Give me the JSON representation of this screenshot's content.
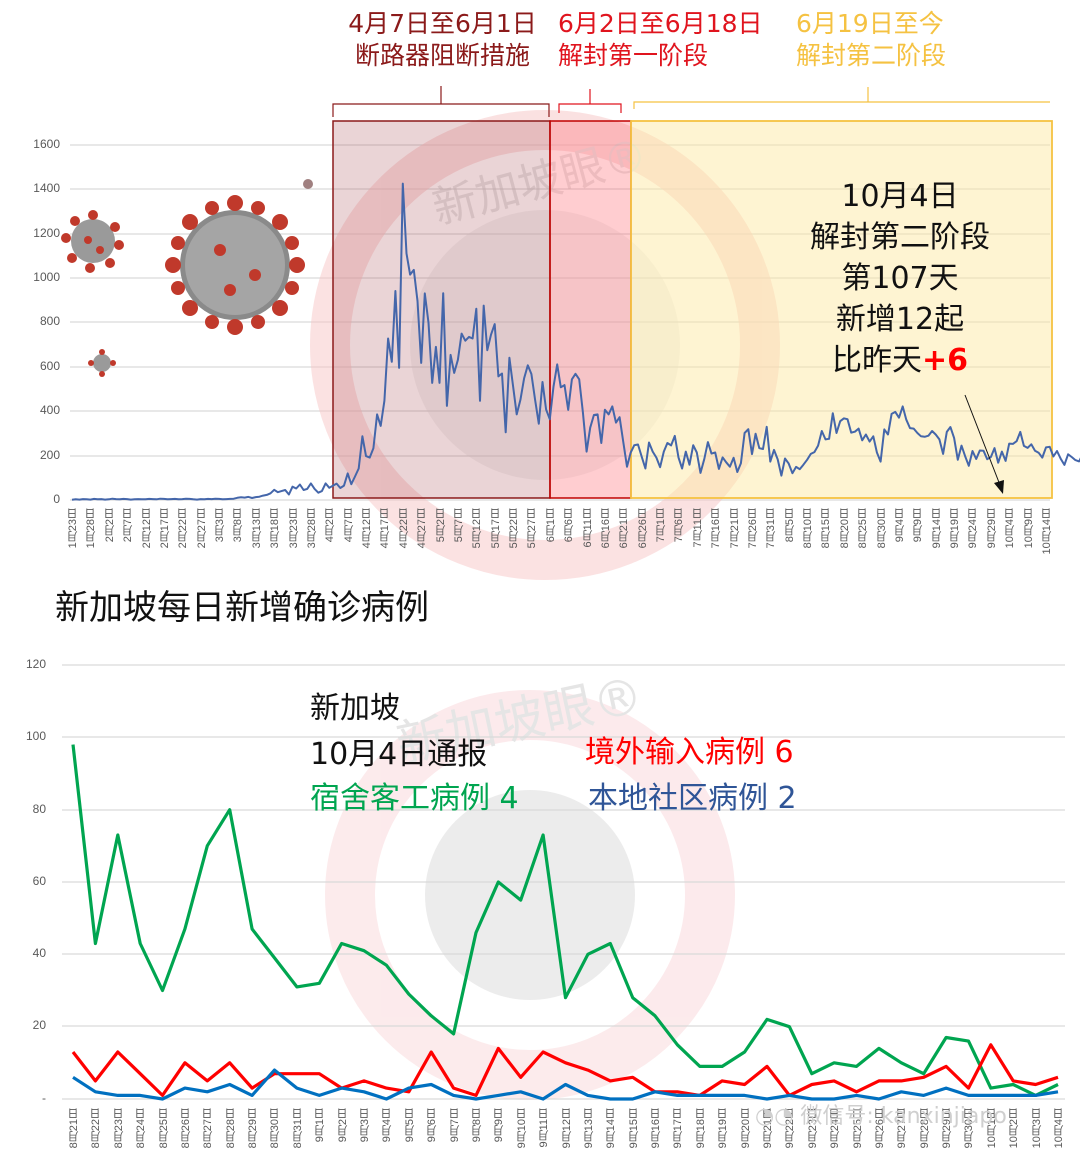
{
  "phases": [
    {
      "date_range": "4月7日至6月1日",
      "label": "断路器阻断措施",
      "color": "#8B1A1A",
      "fill": "rgba(160,60,70,0.25)"
    },
    {
      "date_range": "6月2日至6月18日",
      "label": "解封第一阶段",
      "color": "#E0141E",
      "fill": "rgba(255,80,90,0.3)"
    },
    {
      "date_range": "6月19日至今",
      "label": "解封第二阶段",
      "color": "#F5C242",
      "fill": "rgba(253,230,160,0.45)"
    }
  ],
  "annotation": {
    "line1": "10月4日",
    "line2": "解封第二阶段",
    "line3": "第107天",
    "line4": "新增12起",
    "line5_prefix": "比昨天",
    "line5_delta": "+6"
  },
  "watermark": {
    "text": "新加坡眼",
    "mark": "®",
    "wechat": "微信号: kanxinjiapo"
  },
  "bottom_title": "新加坡每日新增确诊病例",
  "legend": {
    "line1": "新加坡",
    "line2": "10月4日通报",
    "imported": "境外输入病例 6",
    "dorm": "宿舍客工病例 4",
    "community": "本地社区病例 2"
  },
  "chart_data": [
    {
      "type": "line",
      "title": "",
      "xlabel": "",
      "ylabel": "",
      "ylim": [
        0,
        1600
      ],
      "yticks": [
        0,
        200,
        400,
        600,
        800,
        1000,
        1200,
        1400,
        1600
      ],
      "grid": true,
      "categories": [
        "1月23日",
        "1月28日",
        "2月2日",
        "2月7日",
        "2月12日",
        "2月17日",
        "2月22日",
        "2月27日",
        "3月3日",
        "3月8日",
        "3月13日",
        "3月18日",
        "3月23日",
        "3月28日",
        "4月2日",
        "4月7日",
        "4月12日",
        "4月17日",
        "4月22日",
        "4月27日",
        "5月2日",
        "5月7日",
        "5月12日",
        "5月17日",
        "5月22日",
        "5月27日",
        "6月1日",
        "6月6日",
        "6月11日",
        "6月16日",
        "6月21日",
        "6月26日",
        "7月1日",
        "7月6日",
        "7月11日",
        "7月16日",
        "7月21日",
        "7月26日",
        "7月31日",
        "8月5日",
        "8月10日",
        "8月15日",
        "8月20日",
        "8月25日",
        "8月30日",
        "9月4日",
        "9月9日",
        "9月14日",
        "9月19日",
        "9月24日",
        "9月29日",
        "10月4日",
        "10月9日",
        "10月14日"
      ],
      "series": [
        {
          "name": "每日新增确诊",
          "color": "#4472C4",
          "values": [
            1,
            3,
            2,
            4,
            3,
            2,
            5,
            3,
            4,
            2,
            3,
            6,
            4,
            3,
            5,
            4,
            2,
            3,
            4,
            3,
            3,
            5,
            4,
            3,
            6,
            5,
            3,
            4,
            5,
            3,
            4,
            6,
            5,
            3,
            2,
            4,
            3,
            5,
            4,
            6,
            5,
            3,
            4,
            5,
            6,
            10,
            12,
            11,
            14,
            9,
            13,
            15,
            20,
            23,
            30,
            46,
            35,
            40,
            45,
            25,
            60,
            52,
            70,
            45,
            50,
            75,
            50,
            33,
            40,
            75,
            55,
            65,
            74,
            54,
            65,
            120,
            71,
            106,
            142,
            287,
            198,
            191,
            233,
            386,
            334,
            447,
            728,
            623,
            942,
            596,
            1426,
            1111,
            1016,
            1037,
            897,
            618,
            931,
            799,
            528,
            690,
            528,
            932,
            424,
            654,
            573,
            632,
            750,
            718,
            735,
            728,
            862,
            447,
            876,
            675,
            745,
            793,
            557,
            570,
            305,
            641,
            512,
            386,
            451,
            548,
            607,
            568,
            451,
            344,
            532,
            408,
            364,
            511,
            611,
            508,
            518,
            406,
            544,
            569,
            544,
            395,
            218,
            326,
            383,
            386,
            257,
            407,
            386,
            422,
            349,
            373,
            261,
            150,
            214,
            247,
            250,
            195,
            142,
            259,
            218,
            191,
            148,
            218,
            257,
            246,
            289,
            191,
            142,
            218,
            159,
            247,
            214,
            122,
            183,
            261,
            209,
            214,
            140,
            192,
            170,
            150,
            190,
            126,
            166,
            302,
            319,
            207,
            299,
            234,
            230,
            330,
            173,
            226,
            183,
            110,
            187,
            164,
            121,
            149,
            139,
            159,
            181,
            208,
            216,
            245,
            311,
            273,
            276,
            391,
            302,
            355,
            368,
            364,
            304,
            308,
            322,
            269,
            295,
            263,
            287,
            214,
            173,
            318,
            295,
            388,
            397,
            371,
            422,
            362,
            324,
            322,
            302,
            287,
            285,
            290,
            311,
            295,
            273,
            208,
            307,
            329,
            280,
            181,
            245,
            198,
            154,
            221,
            185,
            223,
            222,
            184,
            194,
            234,
            168,
            218,
            176,
            254,
            253,
            265,
            307,
            244,
            235,
            251,
            222,
            213,
            191,
            237,
            240,
            196,
            221,
            186,
            158,
            206,
            194,
            180,
            174,
            207,
            188,
            150,
            178,
            165,
            145,
            160,
            127,
            100,
            217,
            356,
            281,
            308,
            315,
            278,
            288,
            301,
            316,
            292,
            249,
            265,
            274,
            318,
            266,
            302,
            331,
            310,
            356,
            288,
            272,
            262,
            270,
            291,
            302,
            293,
            301,
            251,
            258,
            325,
            260,
            282,
            300,
            251,
            306,
            305,
            289,
            247,
            223,
            180,
            170,
            213,
            197,
            218,
            165,
            189,
            208,
            203,
            231,
            205,
            212,
            236,
            178,
            163,
            183,
            201,
            157,
            150,
            137,
            148,
            121,
            113,
            119,
            108,
            118,
            94,
            88,
            93,
            123,
            75,
            101,
            95,
            66,
            70,
            84,
            79,
            78,
            64,
            80,
            86,
            72,
            55,
            54,
            51,
            62,
            46,
            45,
            52,
            38,
            39,
            48,
            45,
            36,
            43,
            35,
            41,
            34,
            29,
            32,
            33,
            27,
            22,
            29,
            18,
            21,
            27,
            12,
            15,
            9,
            10,
            11,
            13,
            12,
            14,
            6,
            8,
            10,
            9,
            14,
            12
          ]
        }
      ],
      "annotations": [
        "4月7日至6月1日 断路器阻断措施",
        "6月2日至6月18日 解封第一阶段",
        "6月19日至今 解封第二阶段",
        "10月4日 解封第二阶段 第107天 新增12起 比昨天+6"
      ]
    },
    {
      "type": "line",
      "title": "新加坡每日新增确诊病例",
      "xlabel": "",
      "ylabel": "",
      "ylim": [
        0,
        120
      ],
      "yticks": [
        "-",
        20,
        40,
        60,
        80,
        100,
        120
      ],
      "grid": true,
      "legend_position": "top-center (inline annotations)",
      "categories": [
        "8月21日",
        "8月22日",
        "8月23日",
        "8月24日",
        "8月25日",
        "8月26日",
        "8月27日",
        "8月28日",
        "8月29日",
        "8月30日",
        "8月31日",
        "9月1日",
        "9月2日",
        "9月3日",
        "9月4日",
        "9月5日",
        "9月6日",
        "9月7日",
        "9月8日",
        "9月9日",
        "9月10日",
        "9月11日",
        "9月12日",
        "9月13日",
        "9月14日",
        "9月15日",
        "9月16日",
        "9月17日",
        "9月18日",
        "9月19日",
        "9月20日",
        "9月21日",
        "9月22日",
        "9月23日",
        "9月24日",
        "9月25日",
        "9月26日",
        "9月27日",
        "9月28日",
        "9月29日",
        "9月30日",
        "10月1日",
        "10月2日",
        "10月3日",
        "10月4日"
      ],
      "series": [
        {
          "name": "宿舍客工病例",
          "color": "#00A550",
          "values": [
            98,
            43,
            73,
            43,
            30,
            47,
            70,
            80,
            47,
            39,
            31,
            32,
            43,
            41,
            37,
            29,
            23,
            18,
            46,
            60,
            55,
            73,
            28,
            40,
            43,
            28,
            23,
            15,
            9,
            9,
            13,
            22,
            20,
            7,
            10,
            9,
            14,
            10,
            7,
            17,
            16,
            3,
            4,
            1,
            4
          ]
        },
        {
          "name": "境外输入病例",
          "color": "#FF0000",
          "values": [
            13,
            5,
            13,
            7,
            1,
            10,
            5,
            10,
            3,
            7,
            7,
            7,
            3,
            5,
            3,
            2,
            13,
            3,
            1,
            14,
            6,
            13,
            10,
            8,
            5,
            6,
            2,
            2,
            1,
            5,
            4,
            9,
            1,
            4,
            5,
            2,
            5,
            5,
            6,
            9,
            3,
            15,
            5,
            4,
            6
          ]
        },
        {
          "name": "本地社区病例",
          "color": "#0070C0",
          "values": [
            6,
            2,
            1,
            1,
            0,
            3,
            2,
            4,
            1,
            8,
            3,
            1,
            3,
            2,
            0,
            3,
            4,
            1,
            0,
            1,
            2,
            0,
            4,
            1,
            0,
            0,
            2,
            1,
            1,
            1,
            1,
            0,
            1,
            0,
            0,
            1,
            0,
            2,
            1,
            3,
            1,
            1,
            1,
            1,
            2
          ]
        }
      ]
    }
  ]
}
